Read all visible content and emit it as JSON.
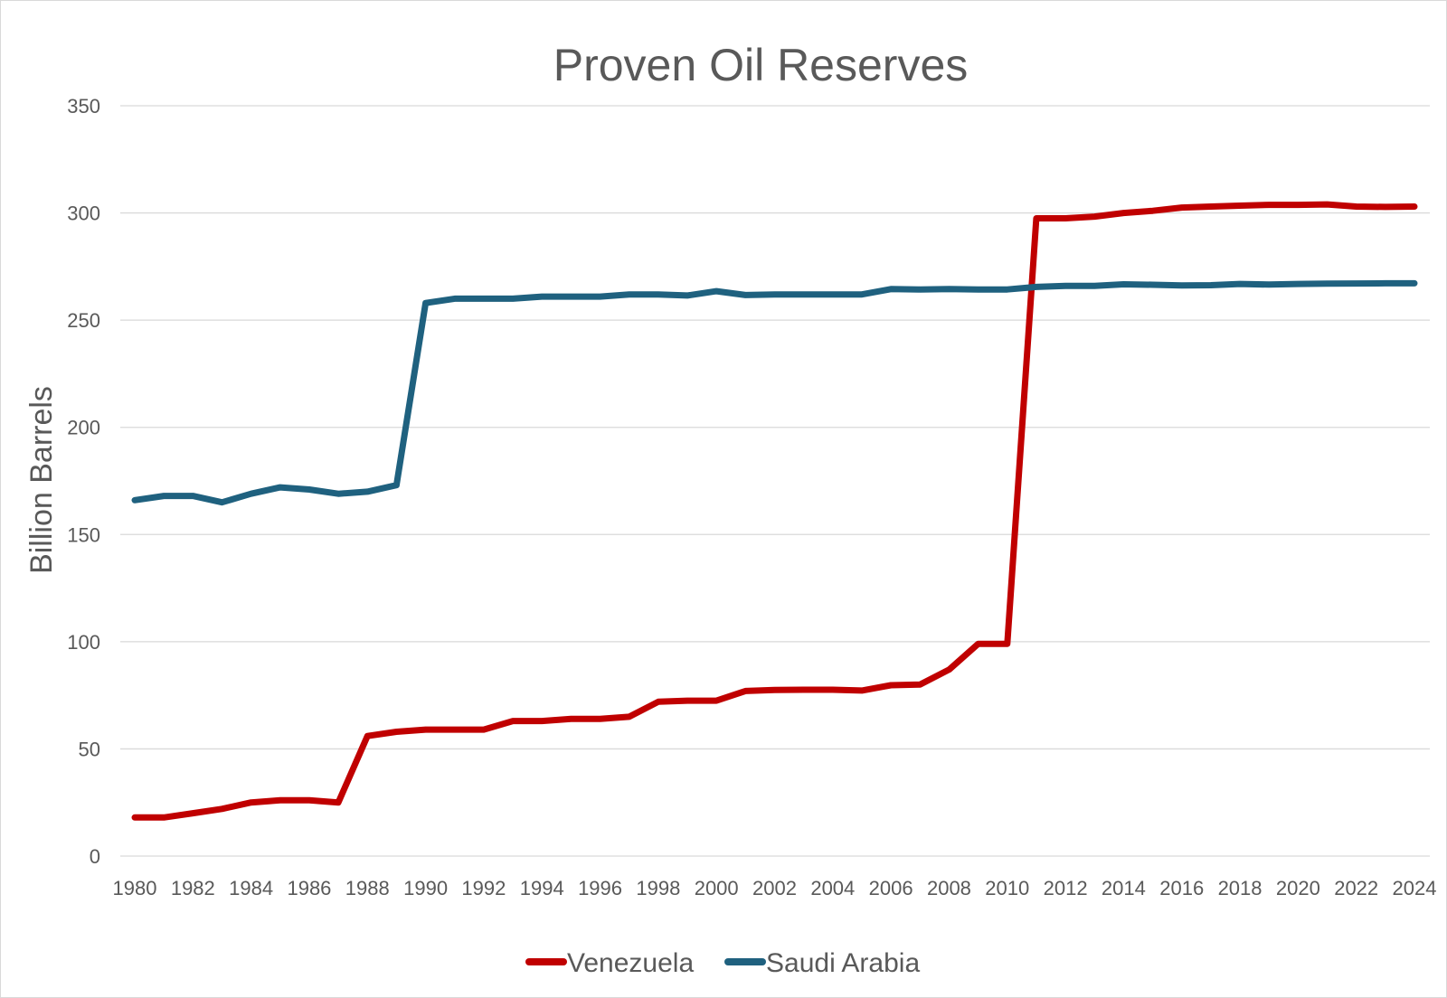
{
  "chart_data": {
    "type": "line",
    "title": "Proven Oil Reserves",
    "xlabel": "",
    "ylabel": "Billion Barrels",
    "ylim": [
      0,
      350
    ],
    "yticks": [
      "0",
      "50",
      "100",
      "150",
      "200",
      "250",
      "300",
      "350"
    ],
    "xticks": [
      "1980",
      "1982",
      "1984",
      "1986",
      "1988",
      "1990",
      "1992",
      "1994",
      "1996",
      "1998",
      "2000",
      "2002",
      "2004",
      "2006",
      "2008",
      "2010",
      "2012",
      "2014",
      "2016",
      "2018",
      "2020",
      "2022",
      "2024"
    ],
    "x": [
      1980,
      1981,
      1982,
      1983,
      1984,
      1985,
      1986,
      1987,
      1988,
      1989,
      1990,
      1991,
      1992,
      1993,
      1994,
      1995,
      1996,
      1997,
      1998,
      1999,
      2000,
      2001,
      2002,
      2003,
      2004,
      2005,
      2006,
      2007,
      2008,
      2009,
      2010,
      2011,
      2012,
      2013,
      2014,
      2015,
      2016,
      2017,
      2018,
      2019,
      2020,
      2021,
      2022,
      2023,
      2024
    ],
    "grid": true,
    "legend_position": "bottom",
    "series": [
      {
        "name": "Venezuela",
        "color": "#c00000",
        "values": [
          18,
          18,
          20,
          22,
          25,
          26,
          26,
          25,
          56,
          58,
          59,
          59,
          59,
          63,
          63,
          64,
          64,
          65,
          72,
          72.5,
          72.5,
          77,
          77.5,
          77.6,
          77.6,
          77.2,
          79.7,
          80,
          87,
          99,
          99,
          297.5,
          297.5,
          298.3,
          300,
          301,
          302.5,
          303,
          303.4,
          303.8,
          303.8,
          304,
          303,
          302.8,
          303
        ]
      },
      {
        "name": "Saudi Arabia",
        "color": "#1f617f",
        "values": [
          166,
          168,
          168,
          165,
          169,
          172,
          171,
          169,
          170,
          173,
          258,
          260,
          260,
          260,
          261,
          261,
          261,
          262,
          262,
          261.5,
          263.5,
          261.7,
          262,
          262,
          262,
          262,
          264.5,
          264.3,
          264.5,
          264.3,
          264.3,
          265.5,
          266,
          266,
          266.7,
          266.5,
          266.2,
          266.3,
          266.9,
          266.6,
          266.9,
          267,
          267.1,
          267.2,
          267.2
        ]
      }
    ]
  }
}
